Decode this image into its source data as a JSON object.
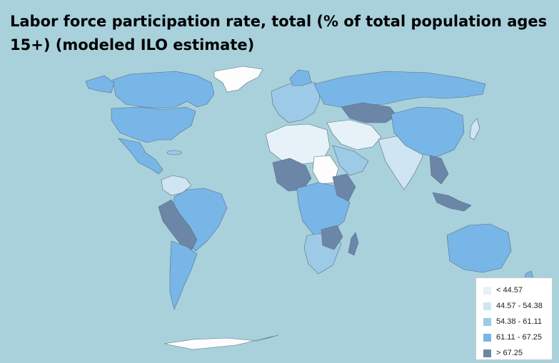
{
  "title": "Labor force participation rate, total (% of total population ages 15+) (modeled ILO estimate)",
  "legend": {
    "items": [
      {
        "label": "< 44.57",
        "color": "#e6f1f8"
      },
      {
        "label": "44.57 - 54.38",
        "color": "#cfe5f2"
      },
      {
        "label": "54.38 - 61.11",
        "color": "#9dcae6"
      },
      {
        "label": "61.11 - 67.25",
        "color": "#78b6e8"
      },
      {
        "label": "> 67.25",
        "color": "#6c86a8"
      }
    ]
  },
  "colors": {
    "ocean": "#a8d1dc",
    "no_data": "#fdfdfd",
    "border": "#5a6e80"
  }
}
